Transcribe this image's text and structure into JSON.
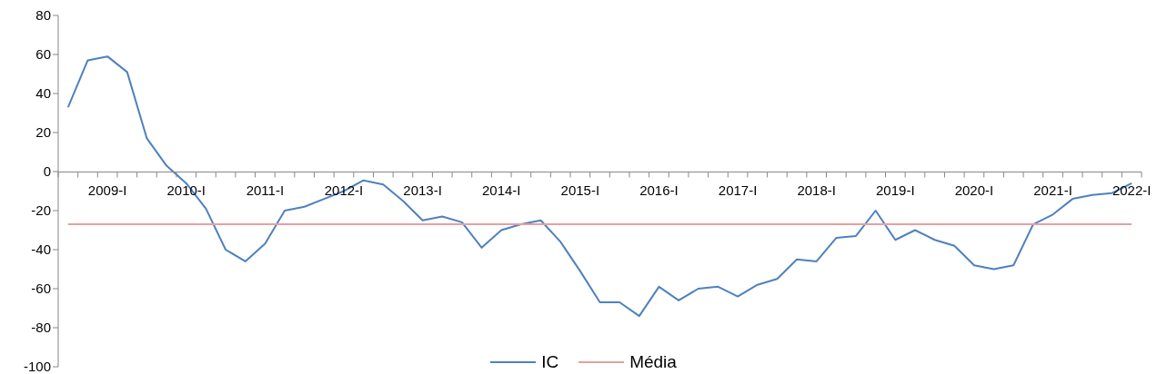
{
  "chart_data": {
    "type": "line",
    "categories": [
      null,
      null,
      "2009-I",
      null,
      null,
      null,
      "2010-I",
      null,
      null,
      null,
      "2011-I",
      null,
      null,
      null,
      "2012-I",
      null,
      null,
      null,
      "2013-I",
      null,
      null,
      null,
      "2014-I",
      null,
      null,
      null,
      "2015-I",
      null,
      null,
      null,
      "2016-I",
      null,
      null,
      null,
      "2017-I",
      null,
      null,
      null,
      "2018-I",
      null,
      null,
      null,
      "2019-I",
      null,
      null,
      null,
      "2020-I",
      null,
      null,
      null,
      "2021-I",
      null,
      null,
      null,
      "2022-I"
    ],
    "series": [
      {
        "name": "IC",
        "color": "#4f81bd",
        "values": [
          33,
          57,
          59,
          51,
          17,
          3,
          -6,
          -19,
          -40,
          -46,
          -37,
          -20,
          -18,
          -14,
          -10,
          -4.5,
          -6.6,
          -15,
          -25,
          -23,
          -26,
          -39,
          -30,
          -27,
          -25,
          -36,
          -51,
          -67,
          -67,
          -74,
          -59,
          -66,
          -60,
          -59,
          -64,
          -58,
          -55,
          -45,
          -46,
          -34,
          -33,
          -20,
          -35,
          -30,
          -35,
          -38,
          -48,
          -50,
          -48,
          -27,
          -22,
          -14,
          -12,
          -11,
          -6
        ]
      },
      {
        "name": "Média",
        "color": "#e6a0a0",
        "values": [
          -27,
          -27,
          -27,
          -27,
          -27,
          -27,
          -27,
          -27,
          -27,
          -27,
          -27,
          -27,
          -27,
          -27,
          -27,
          -27,
          -27,
          -27,
          -27,
          -27,
          -27,
          -27,
          -27,
          -27,
          -27,
          -27,
          -27,
          -27,
          -27,
          -27,
          -27,
          -27,
          -27,
          -27,
          -27,
          -27,
          -27,
          -27,
          -27,
          -27,
          -27,
          -27,
          -27,
          -27,
          -27,
          -27,
          -27,
          -27,
          -27,
          -27,
          -27,
          -27,
          -27,
          -27,
          -27
        ]
      }
    ],
    "ylim": [
      -100,
      80
    ],
    "yticks": [
      -100,
      -80,
      -60,
      -40,
      -20,
      0,
      20,
      40,
      60,
      80
    ],
    "grid": false,
    "legend": "bottom",
    "marker": "none",
    "line_style": "solid"
  }
}
